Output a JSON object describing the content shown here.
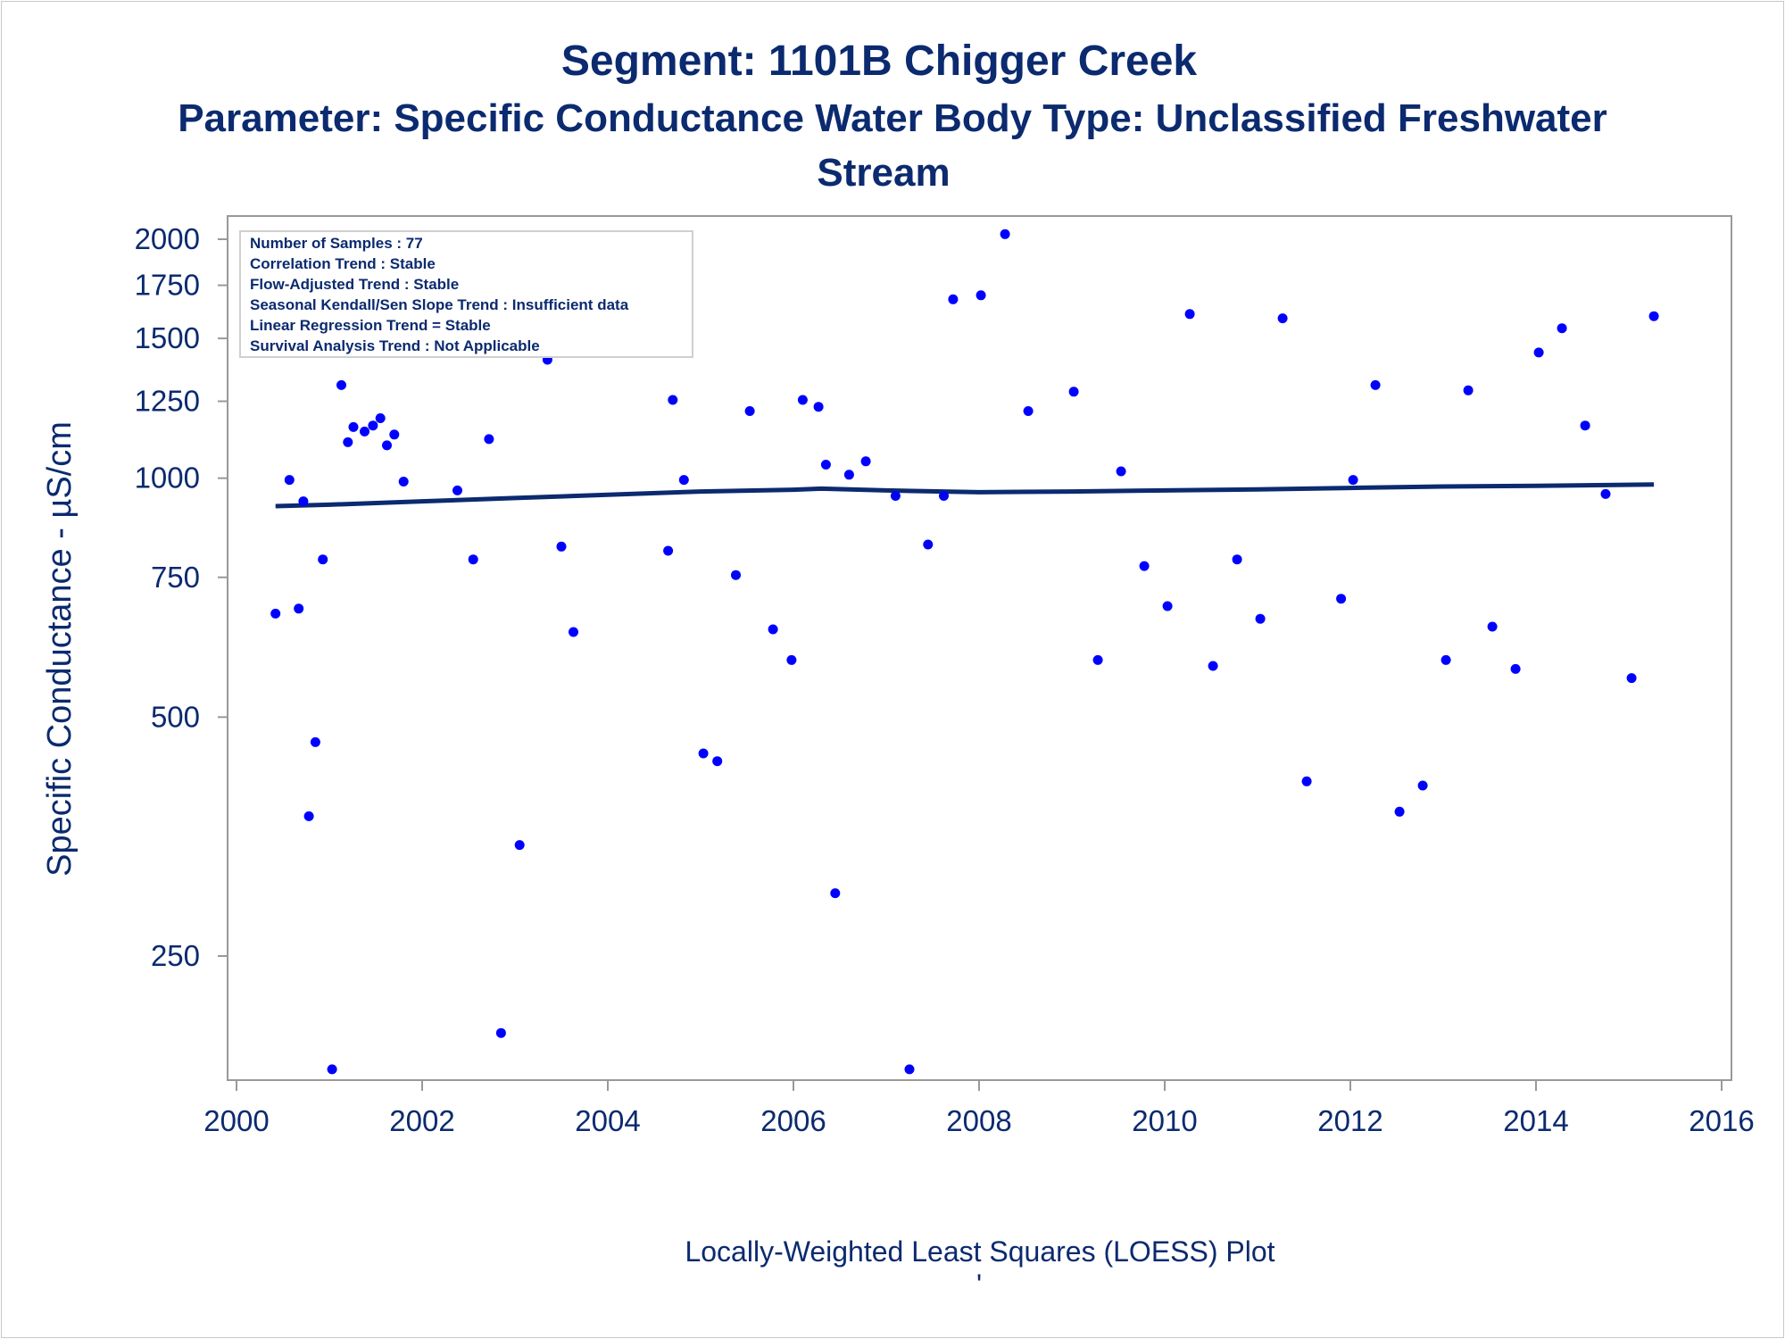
{
  "chart_data": {
    "type": "scatter",
    "title": "Segment: 1101B  Chigger Creek",
    "subtitle_lines": [
      "Parameter: Specific Conductance   Water Body Type: Unclassified Freshwater",
      "Stream"
    ],
    "ylabel": "Specific Conductance -  µS/cm",
    "footer": "Locally-Weighted Least Squares (LOESS) Plot",
    "footer_mark": "'",
    "y_scale": "log",
    "xlim": [
      2000,
      2016
    ],
    "ylim": [
      180,
      2100
    ],
    "x_ticks": [
      2000,
      2002,
      2004,
      2006,
      2008,
      2010,
      2012,
      2014,
      2016
    ],
    "x_tick_labels": [
      "2000",
      "2002",
      "2004",
      "2006",
      "2008",
      "2010",
      "2012",
      "2014",
      "2016"
    ],
    "y_ticks": [
      250,
      500,
      750,
      1000,
      1250,
      1500,
      1750,
      2000
    ],
    "y_tick_labels": [
      "250",
      "500",
      "750",
      "1000",
      "1250",
      "1500",
      "1750",
      "2000"
    ],
    "grid": false,
    "legend": "none",
    "stats_box_position": "top-left",
    "stats_lines": [
      "Number of Samples : 77",
      "Correlation Trend : Stable",
      "Flow-Adjusted Trend : Stable",
      "Seasonal Kendall/Sen Slope Trend : Insufficient data",
      "Linear Regression Trend = Stable",
      "Survival Analysis Trend : Not Applicable"
    ],
    "colors": {
      "points": "#0000ff",
      "loess": "#0b2a6f",
      "text": "#0b2a6f",
      "axis": "#999999"
    },
    "series": [
      {
        "kind": "points",
        "points": [
          {
            "x": 2000.42,
            "y": 675
          },
          {
            "x": 2000.57,
            "y": 995
          },
          {
            "x": 2000.67,
            "y": 685
          },
          {
            "x": 2000.72,
            "y": 935
          },
          {
            "x": 2000.78,
            "y": 375
          },
          {
            "x": 2000.85,
            "y": 465
          },
          {
            "x": 2000.93,
            "y": 790
          },
          {
            "x": 2001.03,
            "y": 180
          },
          {
            "x": 2001.13,
            "y": 1310
          },
          {
            "x": 2001.2,
            "y": 1110
          },
          {
            "x": 2001.26,
            "y": 1160
          },
          {
            "x": 2001.38,
            "y": 1145
          },
          {
            "x": 2001.47,
            "y": 1165
          },
          {
            "x": 2001.55,
            "y": 1190
          },
          {
            "x": 2001.62,
            "y": 1100
          },
          {
            "x": 2001.7,
            "y": 1135
          },
          {
            "x": 2001.8,
            "y": 990
          },
          {
            "x": 2002.05,
            "y": 1470
          },
          {
            "x": 2002.21,
            "y": 1960
          },
          {
            "x": 2002.38,
            "y": 965
          },
          {
            "x": 2002.55,
            "y": 790
          },
          {
            "x": 2002.72,
            "y": 1120
          },
          {
            "x": 2002.85,
            "y": 200
          },
          {
            "x": 2003.05,
            "y": 345
          },
          {
            "x": 2003.2,
            "y": 1440
          },
          {
            "x": 2003.35,
            "y": 1410
          },
          {
            "x": 2003.5,
            "y": 820
          },
          {
            "x": 2003.63,
            "y": 640
          },
          {
            "x": 2004.65,
            "y": 810
          },
          {
            "x": 2004.7,
            "y": 1255
          },
          {
            "x": 2004.82,
            "y": 995
          },
          {
            "x": 2005.03,
            "y": 450
          },
          {
            "x": 2005.18,
            "y": 440
          },
          {
            "x": 2005.38,
            "y": 755
          },
          {
            "x": 2005.53,
            "y": 1215
          },
          {
            "x": 2005.78,
            "y": 645
          },
          {
            "x": 2005.98,
            "y": 590
          },
          {
            "x": 2006.1,
            "y": 1255
          },
          {
            "x": 2006.27,
            "y": 1230
          },
          {
            "x": 2006.35,
            "y": 1040
          },
          {
            "x": 2006.45,
            "y": 300
          },
          {
            "x": 2006.6,
            "y": 1010
          },
          {
            "x": 2006.78,
            "y": 1050
          },
          {
            "x": 2007.1,
            "y": 950
          },
          {
            "x": 2007.25,
            "y": 180
          },
          {
            "x": 2007.45,
            "y": 825
          },
          {
            "x": 2007.62,
            "y": 950
          },
          {
            "x": 2007.72,
            "y": 1680
          },
          {
            "x": 2008.02,
            "y": 1700
          },
          {
            "x": 2008.28,
            "y": 2030
          },
          {
            "x": 2008.53,
            "y": 1215
          },
          {
            "x": 2009.02,
            "y": 1285
          },
          {
            "x": 2009.28,
            "y": 590
          },
          {
            "x": 2009.53,
            "y": 1020
          },
          {
            "x": 2009.78,
            "y": 775
          },
          {
            "x": 2010.03,
            "y": 690
          },
          {
            "x": 2010.27,
            "y": 1610
          },
          {
            "x": 2010.52,
            "y": 580
          },
          {
            "x": 2010.78,
            "y": 790
          },
          {
            "x": 2011.03,
            "y": 665
          },
          {
            "x": 2011.27,
            "y": 1590
          },
          {
            "x": 2011.53,
            "y": 415
          },
          {
            "x": 2011.9,
            "y": 705
          },
          {
            "x": 2012.03,
            "y": 995
          },
          {
            "x": 2012.27,
            "y": 1310
          },
          {
            "x": 2012.53,
            "y": 380
          },
          {
            "x": 2012.78,
            "y": 410
          },
          {
            "x": 2013.03,
            "y": 590
          },
          {
            "x": 2013.27,
            "y": 1290
          },
          {
            "x": 2013.53,
            "y": 650
          },
          {
            "x": 2013.78,
            "y": 575
          },
          {
            "x": 2014.03,
            "y": 1440
          },
          {
            "x": 2014.28,
            "y": 1545
          },
          {
            "x": 2014.53,
            "y": 1165
          },
          {
            "x": 2014.75,
            "y": 955
          },
          {
            "x": 2015.03,
            "y": 560
          },
          {
            "x": 2015.27,
            "y": 1600
          }
        ]
      },
      {
        "kind": "loess",
        "points": [
          {
            "x": 2000.42,
            "y": 922
          },
          {
            "x": 2001.0,
            "y": 926
          },
          {
            "x": 2002.0,
            "y": 935
          },
          {
            "x": 2003.0,
            "y": 944
          },
          {
            "x": 2004.0,
            "y": 953
          },
          {
            "x": 2005.0,
            "y": 962
          },
          {
            "x": 2006.0,
            "y": 967
          },
          {
            "x": 2006.3,
            "y": 970
          },
          {
            "x": 2007.0,
            "y": 965
          },
          {
            "x": 2008.0,
            "y": 960
          },
          {
            "x": 2009.0,
            "y": 962
          },
          {
            "x": 2010.0,
            "y": 965
          },
          {
            "x": 2011.0,
            "y": 968
          },
          {
            "x": 2012.0,
            "y": 972
          },
          {
            "x": 2013.0,
            "y": 976
          },
          {
            "x": 2014.0,
            "y": 978
          },
          {
            "x": 2015.27,
            "y": 982
          }
        ]
      }
    ]
  }
}
